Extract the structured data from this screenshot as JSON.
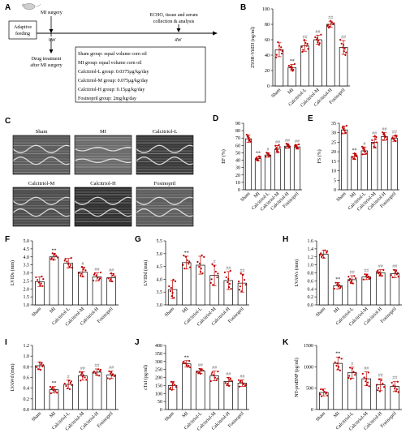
{
  "colors": {
    "bar_fill": "#ffffff",
    "bar_stroke": "#000000",
    "dot": "#c00000",
    "error": "#c00000",
    "echo_bg": "#3c3c3c"
  },
  "schematic": {
    "panel_label": "A",
    "mi_label": "MI surgery",
    "adaptive_label": [
      "Adaptive",
      "feeding"
    ],
    "t0": "0W",
    "t4": "4W",
    "endpoint": [
      "ECHO, tissue and serum",
      "collection & analysis"
    ],
    "drug_label": [
      "Drug treatment",
      "after MI surgery"
    ],
    "groups": [
      "Sham group: equal volume corn oil",
      "MI group: equal volume corn oil",
      "Calcitriol-L group: 0.0375μg/kg/day",
      "Calcitriol-M group: 0.075μg/kg/day",
      "Calcitriol-H group: 0.15μg/kg/day",
      "Fosinopril group: 2mg/kg/day"
    ]
  },
  "echo": {
    "panel_label": "C",
    "titles": [
      "Sham",
      "MI",
      "Calcitriol-L",
      "Calcitriol-M",
      "Calcitriol-H",
      "Fosinopril"
    ]
  },
  "group_labels": [
    "Sham",
    "MI",
    "Calcitriol-L",
    "Calcitriol-M",
    "Calcitriol-H",
    "Fosinopril"
  ],
  "chart_data": [
    {
      "panel": "B",
      "type": "bar",
      "ylabel": "25OH-VitD3 (ng/ml)",
      "ylim": [
        0,
        100
      ],
      "yticks": [
        0,
        20,
        40,
        60,
        80,
        100
      ],
      "values": [
        47,
        24,
        52,
        60,
        80,
        50
      ],
      "errors": [
        9,
        4,
        7,
        6,
        4,
        9
      ],
      "annotations": [
        "",
        "**",
        "##",
        "##",
        "##",
        "##"
      ]
    },
    {
      "panel": "D",
      "type": "bar",
      "ylabel": "EF (%)",
      "ylim": [
        0,
        90
      ],
      "yticks": [
        0,
        10,
        20,
        30,
        40,
        50,
        60,
        70,
        80,
        90
      ],
      "values": [
        69,
        42,
        47,
        55,
        59,
        58
      ],
      "errors": [
        5,
        3,
        3,
        5,
        3,
        3
      ],
      "annotations": [
        "",
        "**",
        "#",
        "##",
        "##",
        "##"
      ]
    },
    {
      "panel": "E",
      "type": "bar",
      "ylabel": "FS (%)",
      "ylim": [
        0,
        35
      ],
      "yticks": [
        0,
        5,
        10,
        15,
        20,
        25,
        30,
        35
      ],
      "values": [
        31.5,
        17.5,
        20.5,
        25,
        28,
        27
      ],
      "errors": [
        2,
        1.5,
        2,
        3,
        2,
        1.5
      ],
      "annotations": [
        "",
        "**",
        "#",
        "##",
        "##",
        "##"
      ]
    },
    {
      "panel": "F",
      "type": "bar",
      "ylabel": "LVIDs (mm)",
      "ylim": [
        1.0,
        5.0
      ],
      "yticks": [
        1.0,
        1.5,
        2.0,
        2.5,
        3.0,
        3.5,
        4.0,
        4.5,
        5.0
      ],
      "values": [
        2.45,
        4.0,
        3.6,
        3.05,
        2.75,
        2.7
      ],
      "errors": [
        0.3,
        0.2,
        0.3,
        0.3,
        0.25,
        0.25
      ],
      "annotations": [
        "",
        "**",
        "",
        "#",
        "##",
        "##"
      ]
    },
    {
      "panel": "G",
      "type": "bar",
      "ylabel": "LVIDd (mm)",
      "ylim": [
        3.0,
        5.5
      ],
      "yticks": [
        3.0,
        3.5,
        4.0,
        4.5,
        5.0,
        5.5
      ],
      "values": [
        3.6,
        4.65,
        4.55,
        4.15,
        3.95,
        3.85
      ],
      "errors": [
        0.35,
        0.25,
        0.35,
        0.4,
        0.35,
        0.35
      ],
      "annotations": [
        "",
        "**",
        "",
        "#",
        "##",
        "##"
      ]
    },
    {
      "panel": "H",
      "type": "bar",
      "ylabel": "LVAWs (mm)",
      "ylim": [
        0,
        1.6
      ],
      "yticks": [
        0,
        0.2,
        0.4,
        0.6,
        0.8,
        1.0,
        1.2,
        1.4,
        1.6
      ],
      "values": [
        1.27,
        0.48,
        0.63,
        0.7,
        0.8,
        0.78
      ],
      "errors": [
        0.1,
        0.08,
        0.1,
        0.07,
        0.08,
        0.1
      ],
      "annotations": [
        "",
        "**",
        "##",
        "##",
        "##",
        "##"
      ]
    },
    {
      "panel": "I",
      "type": "bar",
      "ylabel": "LVAWd (mm)",
      "ylim": [
        0,
        1.2
      ],
      "yticks": [
        0,
        0.2,
        0.4,
        0.6,
        0.8,
        1.0,
        1.2
      ],
      "values": [
        0.82,
        0.37,
        0.47,
        0.63,
        0.7,
        0.65
      ],
      "errors": [
        0.07,
        0.06,
        0.08,
        0.08,
        0.06,
        0.07
      ],
      "annotations": [
        "",
        "**",
        "#",
        "##",
        "##",
        "##"
      ]
    },
    {
      "panel": "J",
      "type": "bar",
      "ylabel": "cTnI (pg/ml)",
      "ylim": [
        0,
        400
      ],
      "yticks": [
        0,
        50,
        100,
        150,
        200,
        250,
        300,
        350,
        400
      ],
      "values": [
        150,
        285,
        240,
        210,
        175,
        165
      ],
      "errors": [
        25,
        20,
        15,
        30,
        25,
        20
      ],
      "annotations": [
        "",
        "**",
        "##",
        "##",
        "##",
        "##"
      ]
    },
    {
      "panel": "K",
      "type": "bar",
      "ylabel": "NT-proBNP (pg/ml)",
      "ylim": [
        0,
        1500
      ],
      "yticks": [
        0,
        500,
        1000,
        1500
      ],
      "values": [
        400,
        1080,
        860,
        720,
        580,
        540
      ],
      "errors": [
        80,
        150,
        130,
        160,
        140,
        120
      ],
      "annotations": [
        "",
        "**",
        "#",
        "##",
        "##",
        "##"
      ]
    }
  ]
}
